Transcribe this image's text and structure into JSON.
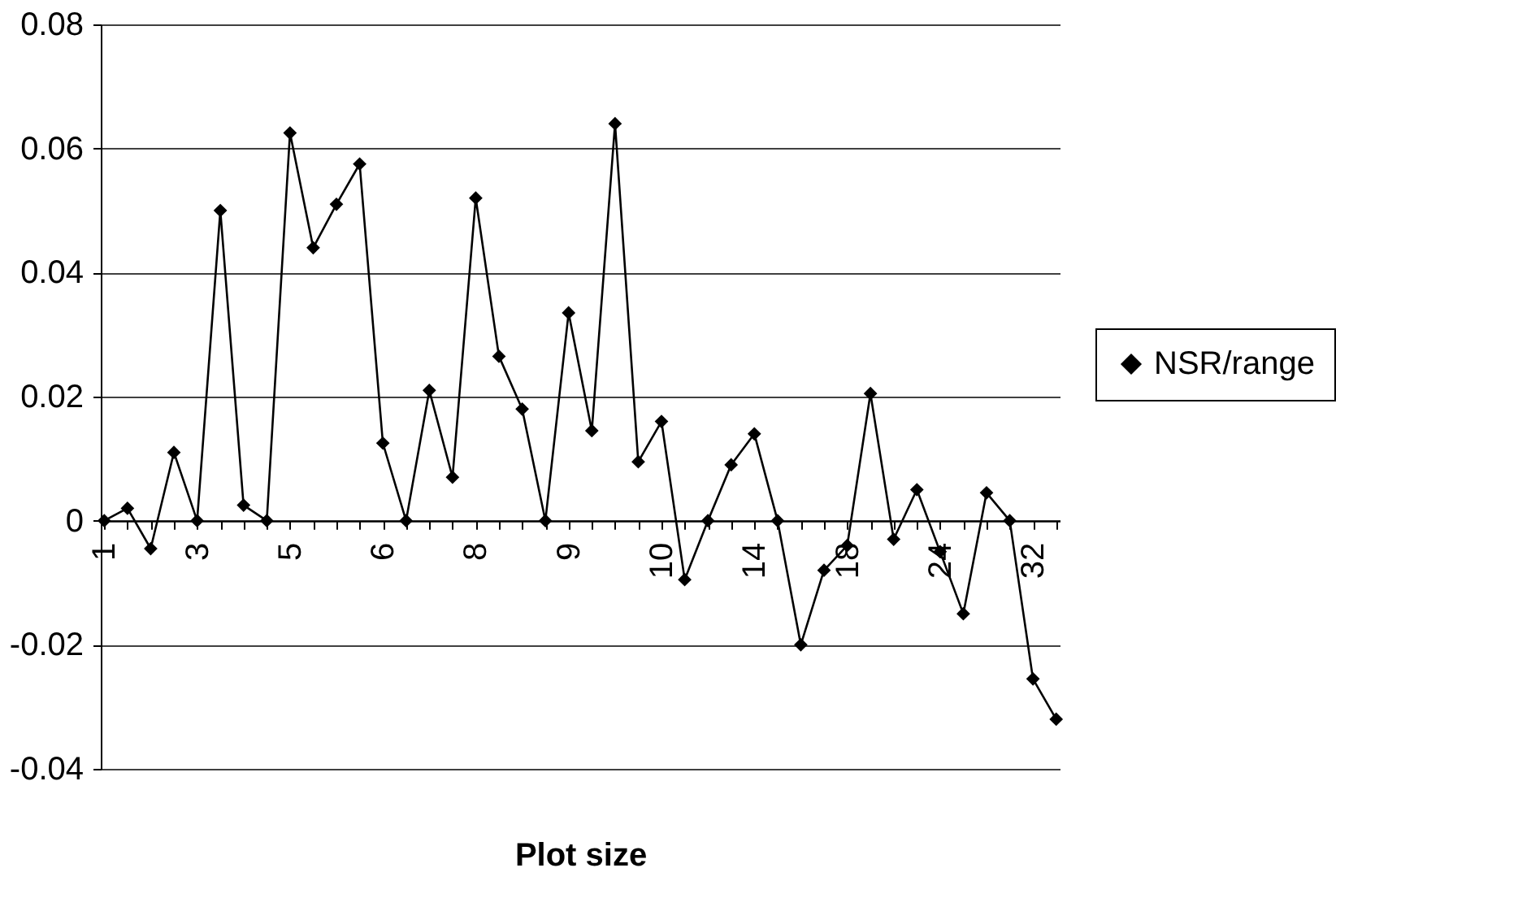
{
  "chart_data": {
    "type": "line",
    "xlabel": "Plot size",
    "categories": [
      "1",
      null,
      null,
      null,
      "3",
      null,
      null,
      null,
      "5",
      null,
      null,
      null,
      "6",
      null,
      null,
      null,
      "8",
      null,
      null,
      null,
      "9",
      null,
      null,
      null,
      "10",
      null,
      null,
      null,
      "14",
      null,
      null,
      null,
      "18",
      null,
      null,
      null,
      "24",
      null,
      null,
      null,
      "32",
      null
    ],
    "series": [
      {
        "name": "NSR/range",
        "color": "#000000",
        "values": [
          0,
          0.002,
          -0.0045,
          0.011,
          0,
          0.05,
          0.0025,
          0,
          0.0625,
          0.044,
          0.051,
          0.0575,
          0.0125,
          0,
          0.021,
          0.007,
          0.052,
          0.0265,
          0.018,
          0,
          0.0335,
          0.0145,
          0.064,
          0.0095,
          0.016,
          -0.0095,
          0,
          0.009,
          0.014,
          0,
          -0.02,
          -0.008,
          -0.004,
          0.0205,
          -0.003,
          0.005,
          -0.005,
          -0.015,
          0.0045,
          0,
          -0.0255,
          -0.032
        ]
      }
    ],
    "ylim": [
      -0.04,
      0.08
    ],
    "yticks": [
      -0.04,
      -0.02,
      0,
      0.02,
      0.04,
      0.06,
      0.08
    ],
    "grid": "y",
    "legend": "right",
    "marker": "diamond",
    "line_style": "solid"
  }
}
